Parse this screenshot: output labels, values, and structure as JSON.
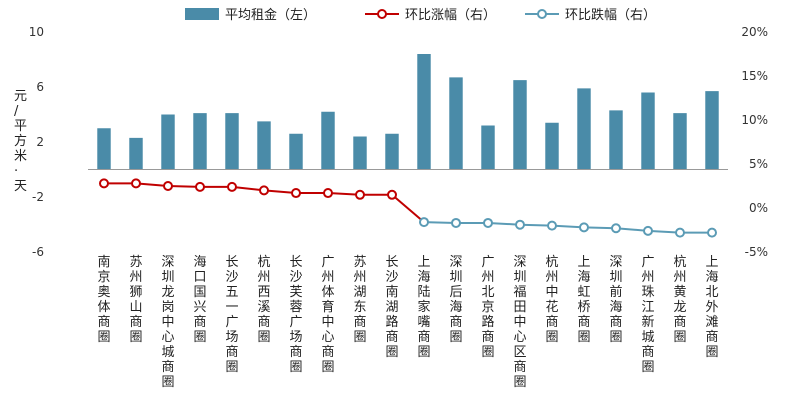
{
  "chart_data": {
    "type": "bar",
    "categories": [
      "南京奥体商圈",
      "苏州狮山商圈",
      "深圳龙岗中心城商圈",
      "海口国兴商圈",
      "长沙五一广场商圈",
      "杭州西溪商圈",
      "长沙芙蓉广场商圈",
      "广州体育中心商圈",
      "苏州湖东商圈",
      "长沙南湖路商圈",
      "上海陆家嘴商圈",
      "深圳后海商圈",
      "广州北京路商圈",
      "深圳福田中心区商圈",
      "杭州中花商圈",
      "上海虹桥商圈",
      "深圳前海商圈",
      "广州珠江新城商圈",
      "杭州黄龙商圈",
      "上海北外滩商圈"
    ],
    "ylabel": "元/平方米·天",
    "left_axis": {
      "ylim": [
        -6,
        10
      ],
      "ticks": [
        "-6",
        "-2",
        "2",
        "6",
        "10"
      ]
    },
    "right_axis": {
      "ylim": [
        -5,
        20
      ],
      "ticks": [
        "-5%",
        "0%",
        "5%",
        "10%",
        "15%",
        "20%"
      ]
    },
    "legend": {
      "position": "top",
      "items": [
        {
          "label": "平均租金（左）",
          "color": "#4a8ba8",
          "marker": "bar"
        },
        {
          "label": "环比涨幅（右）",
          "color": "#c00000",
          "marker": "line-circle"
        },
        {
          "label": "环比跌幅（右）",
          "color": "#5b9bb5",
          "marker": "line-circle"
        }
      ]
    },
    "series": [
      {
        "name": "平均租金（左）",
        "axis": "left",
        "kind": "bar",
        "color": "#4a8ba8",
        "values": [
          3.0,
          2.3,
          4.0,
          4.1,
          4.1,
          3.5,
          2.6,
          4.2,
          2.4,
          2.6,
          8.4,
          6.7,
          3.2,
          6.5,
          3.4,
          5.9,
          4.3,
          5.6,
          4.1,
          5.7
        ]
      },
      {
        "name": "环比涨幅（右）",
        "axis": "right",
        "kind": "line",
        "color": "#c00000",
        "values": [
          2.8,
          2.8,
          2.5,
          2.4,
          2.4,
          2.0,
          1.7,
          1.7,
          1.5,
          1.5,
          null,
          null,
          null,
          null,
          null,
          null,
          null,
          null,
          null,
          null
        ]
      },
      {
        "name": "环比跌幅（右）",
        "axis": "right",
        "kind": "line",
        "color": "#5b9bb5",
        "values": [
          null,
          null,
          null,
          null,
          null,
          null,
          null,
          null,
          null,
          null,
          -1.6,
          -1.7,
          -1.7,
          -1.9,
          -2.0,
          -2.2,
          -2.3,
          -2.6,
          -2.8,
          -2.8
        ]
      }
    ]
  }
}
